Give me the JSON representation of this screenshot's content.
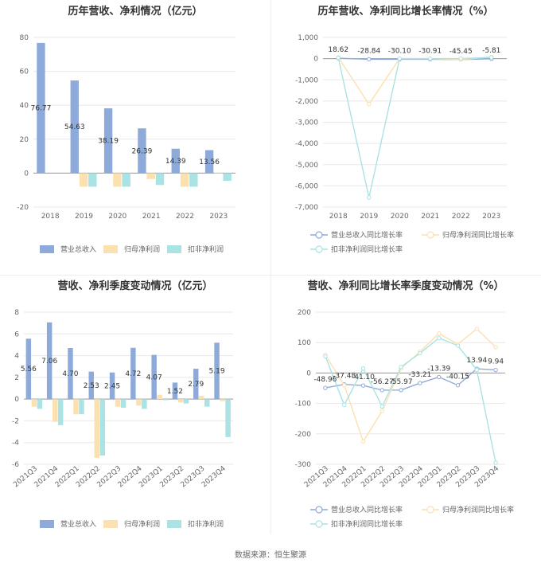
{
  "chart_data": [
    {
      "id": "c1",
      "type": "bar",
      "title": "历年营收、净利情况（亿元）",
      "categories": [
        "2018",
        "2019",
        "2020",
        "2021",
        "2022",
        "2023"
      ],
      "ylim": [
        -20,
        80
      ],
      "yticks": [
        -20,
        0,
        20,
        40,
        60,
        80
      ],
      "series": [
        {
          "name": "营业总收入",
          "color": "#8eaadb",
          "values": [
            76.77,
            54.63,
            38.19,
            26.39,
            14.39,
            13.56
          ],
          "labels": [
            "76.77",
            "54.63",
            "38.19",
            "26.39",
            "14.39",
            "13.56"
          ]
        },
        {
          "name": "归母净利润",
          "color": "#fbe0b0",
          "values": [
            0,
            -8.0,
            -8.0,
            -3.5,
            -8.0,
            -0.3
          ]
        },
        {
          "name": "扣非净利润",
          "color": "#a9e3e3",
          "values": [
            0,
            -8.0,
            -8.0,
            -7.0,
            -8.0,
            -4.5
          ]
        }
      ]
    },
    {
      "id": "c2",
      "type": "line",
      "title": "历年营收、净利同比增长率情况（%）",
      "categories": [
        "2018",
        "2019",
        "2020",
        "2021",
        "2022",
        "2023"
      ],
      "ylim": [
        -7000,
        1000
      ],
      "yticks": [
        -7000,
        -6000,
        -5000,
        -4000,
        -3000,
        -2000,
        -1000,
        0,
        1000
      ],
      "ytick_labels": [
        "-7,000",
        "-6,000",
        "-5,000",
        "-4,000",
        "-3,000",
        "-2,000",
        "-1,000",
        "0",
        "1,000"
      ],
      "series": [
        {
          "name": "营业总收入同比增长率",
          "color": "#8eaadb",
          "values": [
            18.62,
            -28.84,
            -30.1,
            -30.91,
            -45.45,
            -5.81
          ],
          "labels": [
            "18.62",
            "-28.84",
            "-30.10",
            "-30.91",
            "-45.45",
            "-5.81"
          ]
        },
        {
          "name": "归母净利润同比增长率",
          "color": "#fbe0b0",
          "values": [
            60,
            -2150,
            0,
            0,
            -50,
            80
          ]
        },
        {
          "name": "扣非净利润同比增长率",
          "color": "#a9e3e3",
          "values": [
            40,
            -6550,
            0,
            0,
            0,
            60
          ]
        }
      ]
    },
    {
      "id": "c3",
      "type": "bar",
      "title": "营收、净利季度变动情况（亿元）",
      "categories": [
        "2021Q3",
        "2021Q4",
        "2022Q1",
        "2022Q2",
        "2022Q3",
        "2022Q4",
        "2023Q1",
        "2023Q2",
        "2023Q3",
        "2023Q4"
      ],
      "ylim": [
        -6,
        8
      ],
      "yticks": [
        -6,
        -4,
        -2,
        0,
        2,
        4,
        6,
        8
      ],
      "series": [
        {
          "name": "营业总收入",
          "color": "#8eaadb",
          "values": [
            5.56,
            7.06,
            4.7,
            2.53,
            2.45,
            4.72,
            4.07,
            1.52,
            2.79,
            5.19
          ],
          "labels": [
            "5.56",
            "7.06",
            "4.70",
            "2.53",
            "2.45",
            "4.72",
            "4.07",
            "1.52",
            "2.79",
            "5.19"
          ]
        },
        {
          "name": "归母净利润",
          "color": "#fbe0b0",
          "values": [
            -0.7,
            -2.1,
            -1.4,
            -5.4,
            -0.7,
            -0.6,
            0.4,
            -0.3,
            0.3,
            -0.2
          ]
        },
        {
          "name": "扣非净利润",
          "color": "#a9e3e3",
          "values": [
            -0.9,
            -2.4,
            -1.4,
            -5.2,
            -0.8,
            -0.9,
            -0.1,
            -0.4,
            -0.7,
            -3.5
          ]
        }
      ]
    },
    {
      "id": "c4",
      "type": "line",
      "title": "营收、净利同比增长率季度变动情况（%）",
      "categories": [
        "2021Q3",
        "2021Q4",
        "2022Q1",
        "2022Q2",
        "2022Q3",
        "2022Q4",
        "2023Q1",
        "2023Q2",
        "2023Q3",
        "2023Q4"
      ],
      "ylim": [
        -300,
        200
      ],
      "yticks": [
        -300,
        -200,
        -100,
        0,
        100,
        200
      ],
      "series": [
        {
          "name": "营业总收入同比增长率",
          "color": "#8eaadb",
          "values": [
            -48.96,
            -37.48,
            -41.1,
            -56.27,
            -55.97,
            -33.21,
            -13.39,
            -40.15,
            13.94,
            9.94
          ],
          "labels": [
            "-48.96",
            "-37.48",
            "-41.10",
            "-56.27",
            "-55.97",
            "-33.21",
            "-13.39",
            "-40.15",
            "13.94",
            "9.94"
          ]
        },
        {
          "name": "归母净利润同比增长率",
          "color": "#fbe0b0",
          "values": [
            60,
            -40,
            -225,
            -125,
            15,
            70,
            130,
            95,
            145,
            85
          ]
        },
        {
          "name": "扣非净利润同比增长率",
          "color": "#a9e3e3",
          "values": [
            55,
            -105,
            15,
            -110,
            20,
            65,
            115,
            90,
            10,
            -295
          ]
        }
      ]
    }
  ],
  "source_text": "数据来源：恒生聚源"
}
